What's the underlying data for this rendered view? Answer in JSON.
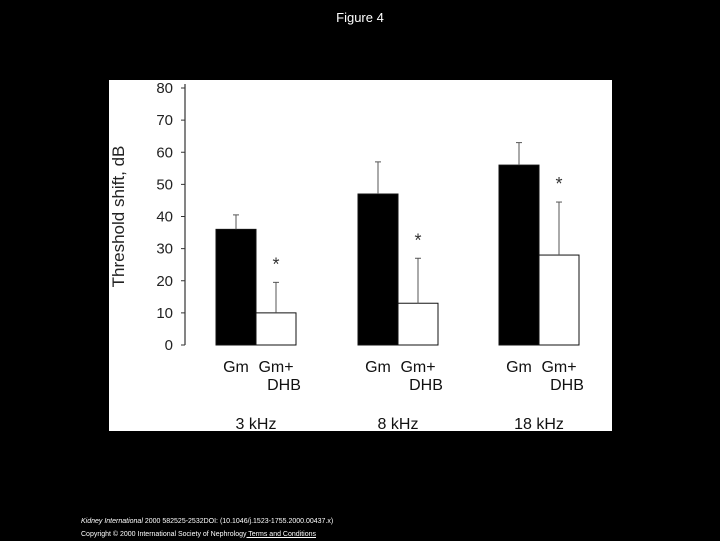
{
  "slide": {
    "title": "Figure 4"
  },
  "footer": {
    "journal": "Kidney International",
    "citation": " 2000 582525-2532DOI: (10.1046/j.1523-1755.2000.00437.x)",
    "copyright": "Copyright © 2000 International Society of Nephrology",
    "link": " Terms and Conditions"
  },
  "chart_data": {
    "type": "bar",
    "ylabel": "Threshold shift, dB",
    "ylim": [
      0,
      80
    ],
    "yticks": [
      0,
      10,
      20,
      30,
      40,
      50,
      60,
      70,
      80
    ],
    "groups": [
      "3 kHz",
      "8 kHz",
      "18 kHz"
    ],
    "bar_labels": [
      [
        "Gm",
        ""
      ],
      [
        "Gm+",
        "DHB"
      ]
    ],
    "series": [
      {
        "name": "Gm",
        "fill": "#000000",
        "values": [
          36,
          47,
          56
        ],
        "errors": [
          4.5,
          10,
          7
        ]
      },
      {
        "name": "Gm+DHB",
        "fill": "#ffffff",
        "values": [
          10,
          13,
          28
        ],
        "errors": [
          9.5,
          14,
          16.5
        ]
      }
    ],
    "annotations": [
      {
        "group": 0,
        "series": 1,
        "text": "*"
      },
      {
        "group": 1,
        "series": 1,
        "text": "*"
      },
      {
        "group": 2,
        "series": 1,
        "text": "*"
      }
    ],
    "grid": false,
    "legend": "none"
  }
}
